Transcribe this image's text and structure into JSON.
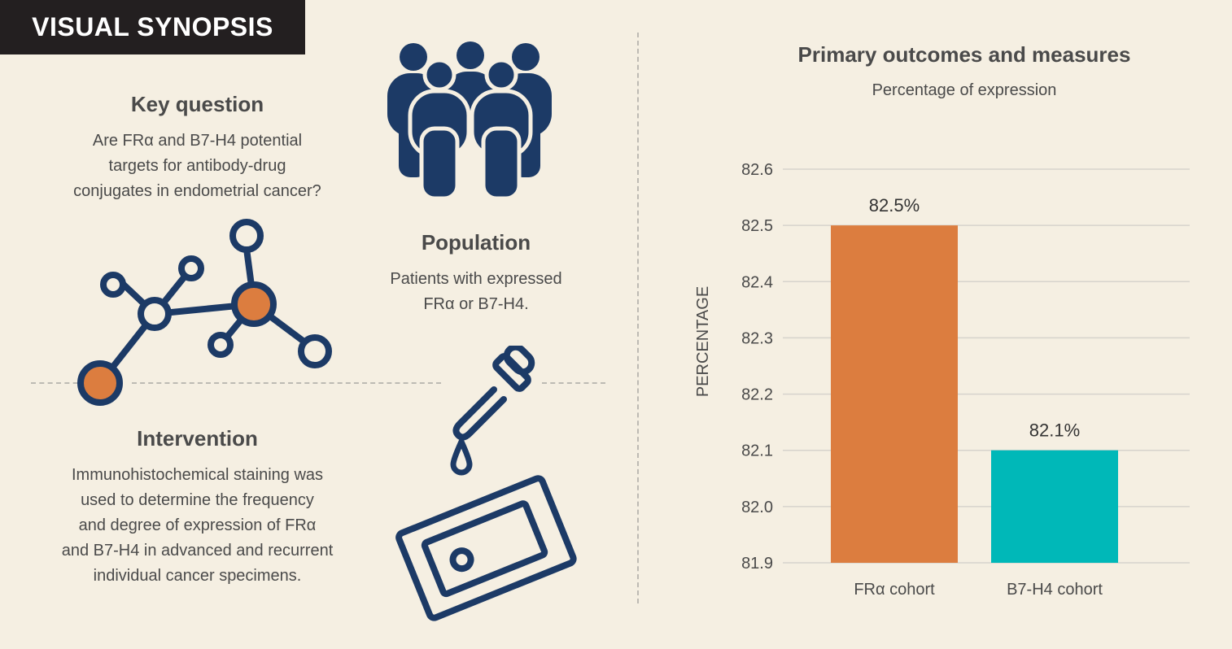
{
  "badge": {
    "label": "VISUAL SYNOPSIS"
  },
  "key_question": {
    "title": "Key question",
    "lines": [
      "Are FRα and B7-H4 potential",
      "targets for antibody-drug",
      "conjugates in endometrial cancer?"
    ]
  },
  "population": {
    "title": "Population",
    "lines": [
      "Patients with expressed",
      "FRα or B7-H4."
    ]
  },
  "intervention": {
    "title": "Intervention",
    "lines": [
      "Immunohistochemical staining was",
      "used to determine the frequency",
      "and degree of expression of FRα",
      "and B7-H4 in advanced and recurrent",
      "individual cancer specimens."
    ]
  },
  "icons": {
    "people": "people-group-icon",
    "molecule": "molecule-icon",
    "dropper": "dropper-icon",
    "slide": "slide-icon",
    "icon_color": "#1c3a66",
    "accent_color": "#dc7d3f"
  },
  "chart_data": {
    "type": "bar",
    "title": "Primary outcomes and measures",
    "subtitle": "Percentage of expression",
    "ylabel": "PERCENTAGE",
    "xlabel": "",
    "categories": [
      "FRα cohort",
      "B7-H4 cohort"
    ],
    "values": [
      82.5,
      82.1
    ],
    "value_labels": [
      "82.5%",
      "82.1%"
    ],
    "colors": [
      "#dc7d3f",
      "#00b8b8"
    ],
    "ylim": [
      81.9,
      82.6
    ],
    "yticks": [
      "82.6",
      "82.5",
      "82.4",
      "82.3",
      "82.2",
      "82.1",
      "82.0",
      "81.9"
    ],
    "grid": true
  }
}
